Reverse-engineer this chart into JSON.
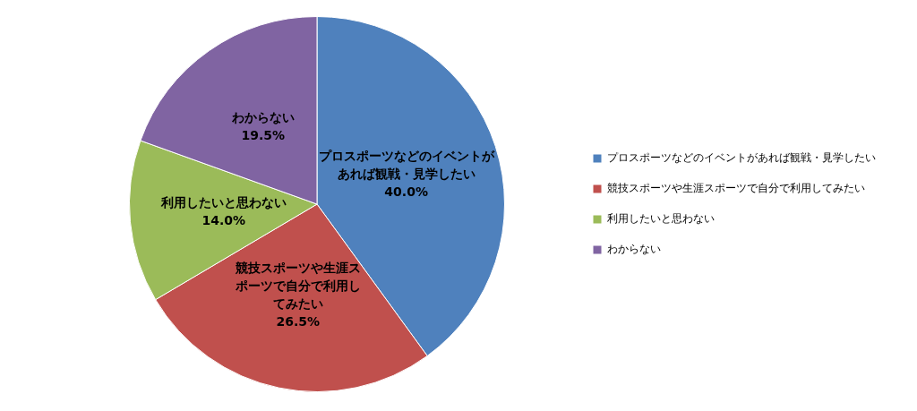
{
  "chart_data": {
    "type": "pie",
    "categories": [
      "プロスポーツなどのイベントがあれば観戦・見学したい",
      "競技スポーツや生涯スポーツで自分で利用してみたい",
      "利用したいと思わない",
      "わからない"
    ],
    "values": [
      40.0,
      26.5,
      14.0,
      19.5
    ],
    "value_labels": [
      "40.0%",
      "26.5%",
      "14.0%",
      "19.5%"
    ],
    "colors": [
      "#4f81bd",
      "#c0504d",
      "#9bbb59",
      "#8064a2"
    ],
    "legend": "right"
  }
}
